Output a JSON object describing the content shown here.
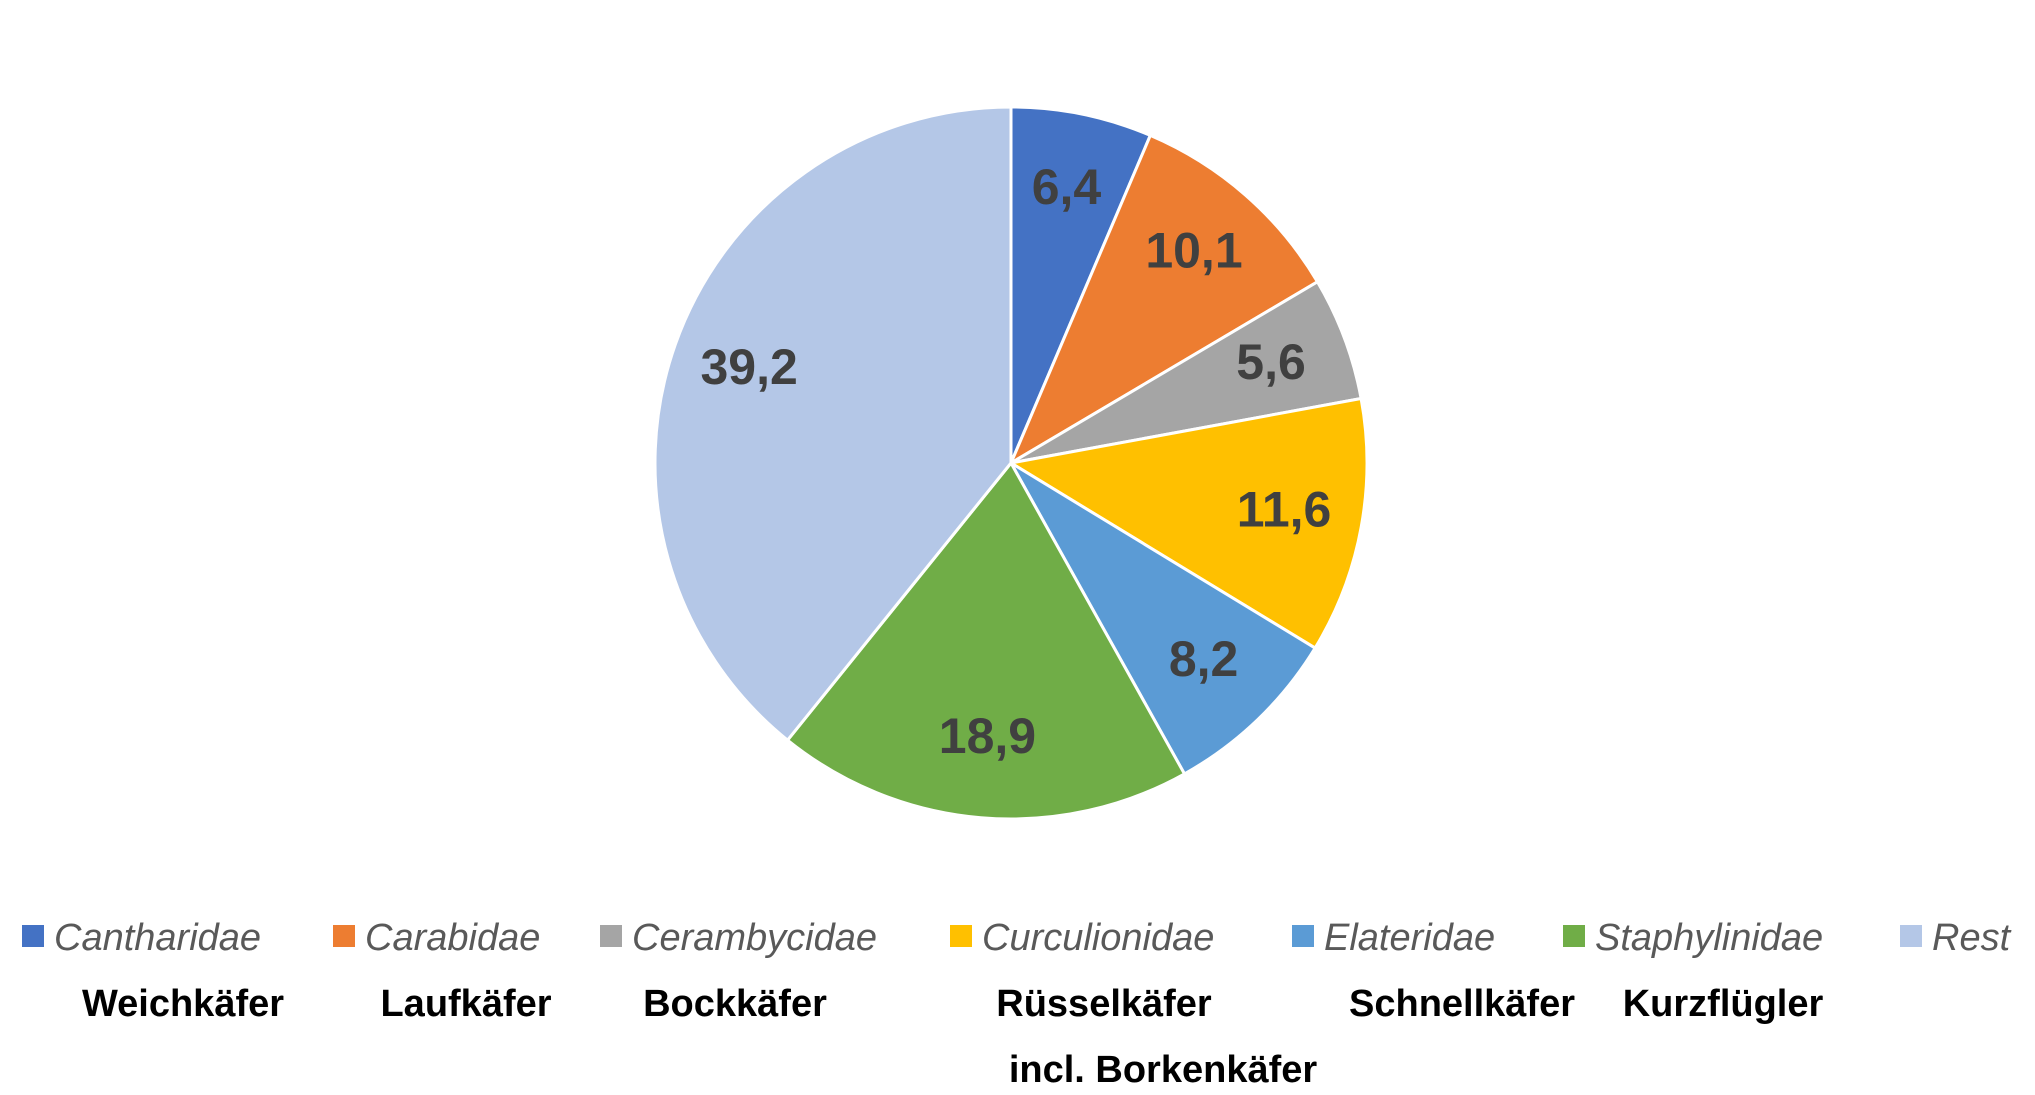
{
  "chart_data": {
    "type": "pie",
    "categories": [
      "Cantharidae",
      "Carabidae",
      "Cerambycidae",
      "Curculionidae",
      "Elateridae",
      "Staphylinidae",
      "Rest"
    ],
    "common_names": [
      "Weichkäfer",
      "Laufkäfer",
      "Bockkäfer",
      "Rüsselkäfer",
      "Schnellkäfer",
      "Kurzflügler",
      null
    ],
    "annotation": "incl. Borkenkäfer",
    "values": [
      6.4,
      10.1,
      5.6,
      11.6,
      8.2,
      18.9,
      39.2
    ],
    "value_labels": [
      "6,4",
      "10,1",
      "5,6",
      "11,6",
      "8,2",
      "18,9",
      "39,2"
    ],
    "colors": [
      "#4472c4",
      "#ed7d31",
      "#a5a5a5",
      "#ffc000",
      "#5b9bd5",
      "#70ad47",
      "#b4c7e7"
    ],
    "legend": "bottom"
  }
}
